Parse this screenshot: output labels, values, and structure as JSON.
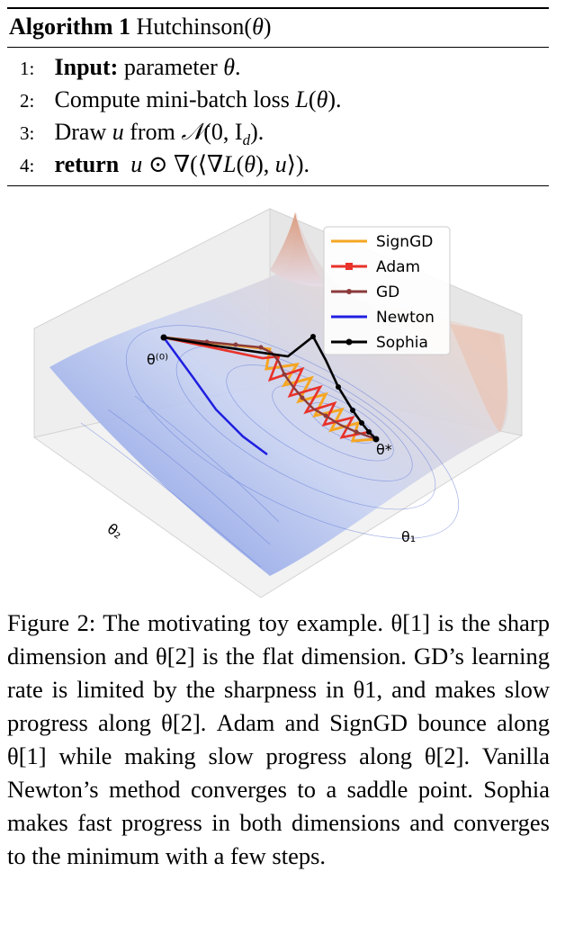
{
  "algorithm": {
    "title_label": "Algorithm 1",
    "title_name": "Hutchinson(θ)",
    "lines": [
      {
        "num": "1:",
        "keyword": "Input:",
        "text": "parameter θ."
      },
      {
        "num": "2:",
        "keyword": "",
        "text": "Compute mini-batch loss L(θ)."
      },
      {
        "num": "3:",
        "keyword": "",
        "text": "Draw u from 𝒩(0, I_d)."
      },
      {
        "num": "4:",
        "keyword": "return",
        "text": "u ⊙ ∇(⟨∇L(θ), u⟩)."
      }
    ]
  },
  "figure": {
    "legend": [
      {
        "name": "SignGD",
        "color": "#f5a623"
      },
      {
        "name": "Adam",
        "color": "#e8322a"
      },
      {
        "name": "GD",
        "color": "#8b3a3a"
      },
      {
        "name": "Newton",
        "color": "#1f1fe0"
      },
      {
        "name": "Sophia",
        "color": "#000000"
      }
    ],
    "start_label": "θ(0)",
    "end_label": "θ*",
    "axis_x_label": "θ1",
    "axis_y_label": "θ2"
  },
  "caption": {
    "text": "Figure 2: The motivating toy example. θ[1] is the sharp dimension and θ[2] is the flat dimension. GD’s learning rate is limited by the sharpness in θ1, and makes slow progress along θ[2]. Adam and SignGD bounce along θ[1] while making slow progress along θ[2]. Vanilla Newton’s method converges to a saddle point. Sophia makes fast progress in both dimensions and converges to the minimum with a few steps."
  }
}
